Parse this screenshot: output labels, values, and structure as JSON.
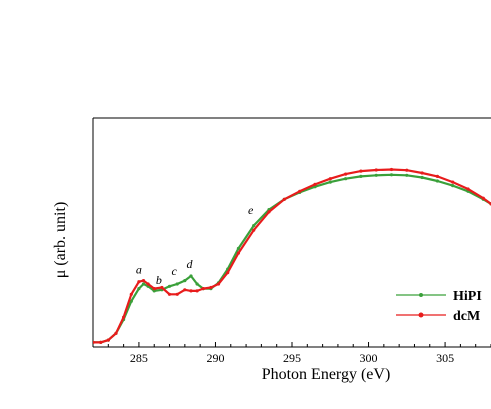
{
  "chart_data": {
    "type": "line",
    "xlabel": "Photon Energy (eV)",
    "ylabel": "μ (arb. unit)",
    "xlim": [
      282,
      308
    ],
    "ylim": [
      0,
      1.0
    ],
    "x_ticks": [
      285,
      290,
      295,
      300,
      305
    ],
    "y_ticks_labeled": false,
    "grid": false,
    "legend_position": "bottom-right",
    "series": [
      {
        "name": "HiPI",
        "color": "#3aa03a",
        "marker": "dot",
        "x": [
          282,
          282.5,
          283,
          283.5,
          284,
          284.5,
          285,
          285.3,
          285.6,
          286,
          286.5,
          287,
          287.5,
          288,
          288.4,
          288.8,
          289.2,
          289.7,
          290.2,
          290.8,
          291.5,
          292.5,
          293.5,
          294.5,
          295.5,
          296.5,
          297.5,
          298.5,
          299.5,
          300.5,
          301.5,
          302.5,
          303.5,
          304.5,
          305.5,
          306.5,
          307.5,
          308
        ],
        "y": [
          0.02,
          0.02,
          0.03,
          0.06,
          0.12,
          0.2,
          0.255,
          0.275,
          0.265,
          0.245,
          0.25,
          0.265,
          0.275,
          0.29,
          0.31,
          0.275,
          0.255,
          0.255,
          0.28,
          0.34,
          0.43,
          0.53,
          0.6,
          0.645,
          0.675,
          0.7,
          0.72,
          0.735,
          0.745,
          0.75,
          0.752,
          0.75,
          0.74,
          0.725,
          0.705,
          0.68,
          0.645,
          0.625
        ]
      },
      {
        "name": "dcM",
        "color": "#e81c1c",
        "marker": "dot",
        "x": [
          282,
          282.5,
          283,
          283.5,
          284,
          284.5,
          285,
          285.3,
          285.6,
          286,
          286.5,
          287,
          287.5,
          288,
          288.4,
          288.8,
          289.2,
          289.7,
          290.2,
          290.8,
          291.5,
          292.5,
          293.5,
          294.5,
          295.5,
          296.5,
          297.5,
          298.5,
          299.5,
          300.5,
          301.5,
          302.5,
          303.5,
          304.5,
          305.5,
          306.5,
          307.5,
          308
        ],
        "y": [
          0.02,
          0.02,
          0.03,
          0.06,
          0.13,
          0.23,
          0.285,
          0.29,
          0.275,
          0.255,
          0.26,
          0.23,
          0.23,
          0.25,
          0.245,
          0.245,
          0.255,
          0.26,
          0.275,
          0.325,
          0.41,
          0.51,
          0.59,
          0.645,
          0.68,
          0.71,
          0.735,
          0.755,
          0.768,
          0.773,
          0.775,
          0.772,
          0.76,
          0.745,
          0.72,
          0.69,
          0.65,
          0.625
        ]
      }
    ],
    "annotations": [
      {
        "text": "a",
        "x": 285.0,
        "y": 0.32
      },
      {
        "text": "b",
        "x": 286.3,
        "y": 0.275
      },
      {
        "text": "c",
        "x": 287.3,
        "y": 0.315
      },
      {
        "text": "d",
        "x": 288.3,
        "y": 0.345
      },
      {
        "text": "e",
        "x": 292.3,
        "y": 0.58
      }
    ]
  }
}
